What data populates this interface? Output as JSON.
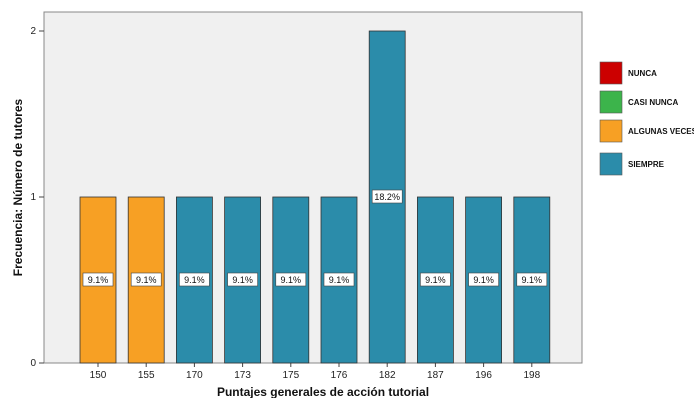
{
  "chart_data": {
    "type": "bar",
    "xlabel": "Puntajes generales de acción tutorial",
    "ylabel": "Frecuencia: Número de tutores",
    "ylim": [
      0,
      2
    ],
    "yticks": [
      0,
      1,
      2
    ],
    "grid": false,
    "legend_position": "right",
    "categories": [
      "150",
      "155",
      "170",
      "173",
      "175",
      "176",
      "182",
      "187",
      "196",
      "198"
    ],
    "values": [
      1,
      1,
      1,
      1,
      1,
      1,
      2,
      1,
      1,
      1
    ],
    "data_labels": [
      "9.1%",
      "9.1%",
      "9.1%",
      "9.1%",
      "9.1%",
      "9.1%",
      "18.2%",
      "9.1%",
      "9.1%",
      "9.1%"
    ],
    "bar_groups": [
      "ALGUNAS VECES",
      "ALGUNAS VECES",
      "SIEMPRE",
      "SIEMPRE",
      "SIEMPRE",
      "SIEMPRE",
      "SIEMPRE",
      "SIEMPRE",
      "SIEMPRE",
      "SIEMPRE"
    ],
    "legend": [
      {
        "label": "NUNCA",
        "color": "#cc0000"
      },
      {
        "label": "CASI NUNCA",
        "color": "#3cb44b"
      },
      {
        "label": "ALGUNAS VECES",
        "color": "#f7a024"
      },
      {
        "label": "SIEMPRE",
        "color": "#2b8caa"
      }
    ],
    "plot_background": "#f0f0f0"
  }
}
